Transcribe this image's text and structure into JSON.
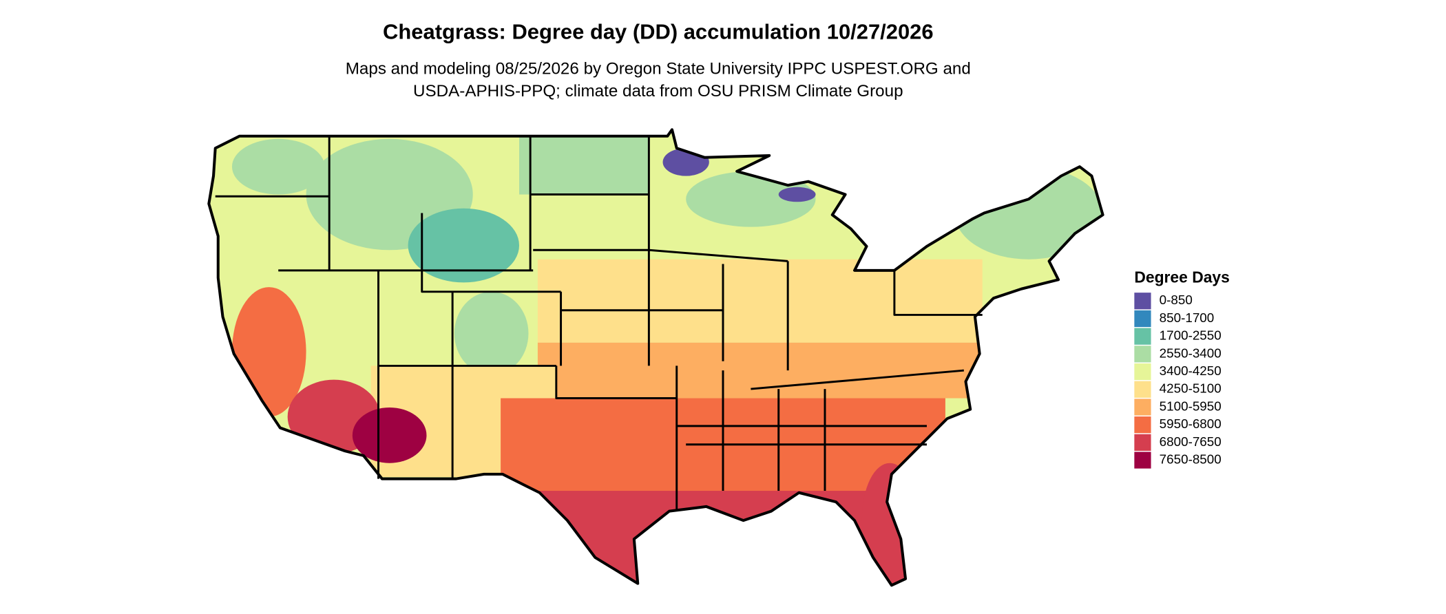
{
  "title": "Cheatgrass: Degree day (DD) accumulation 10/27/2026",
  "subtitle": [
    "Maps and modeling 08/25/2026 by Oregon State University IPPC USPEST.ORG and",
    "USDA-APHIS-PPQ; climate data from OSU PRISM Climate Group"
  ],
  "legend": {
    "title": "Degree Days",
    "items": [
      {
        "label": "0-850",
        "color": "#5E4FA2"
      },
      {
        "label": "850-1700",
        "color": "#3288BD"
      },
      {
        "label": "1700-2550",
        "color": "#66C2A5"
      },
      {
        "label": "2550-3400",
        "color": "#ABDDA4"
      },
      {
        "label": "3400-4250",
        "color": "#E6F598"
      },
      {
        "label": "4250-5100",
        "color": "#FEE08B"
      },
      {
        "label": "5100-5950",
        "color": "#FDAE61"
      },
      {
        "label": "5950-6800",
        "color": "#F46D43"
      },
      {
        "label": "6800-7650",
        "color": "#D53E4F"
      },
      {
        "label": "7650-8500",
        "color": "#9E0142"
      }
    ]
  }
}
